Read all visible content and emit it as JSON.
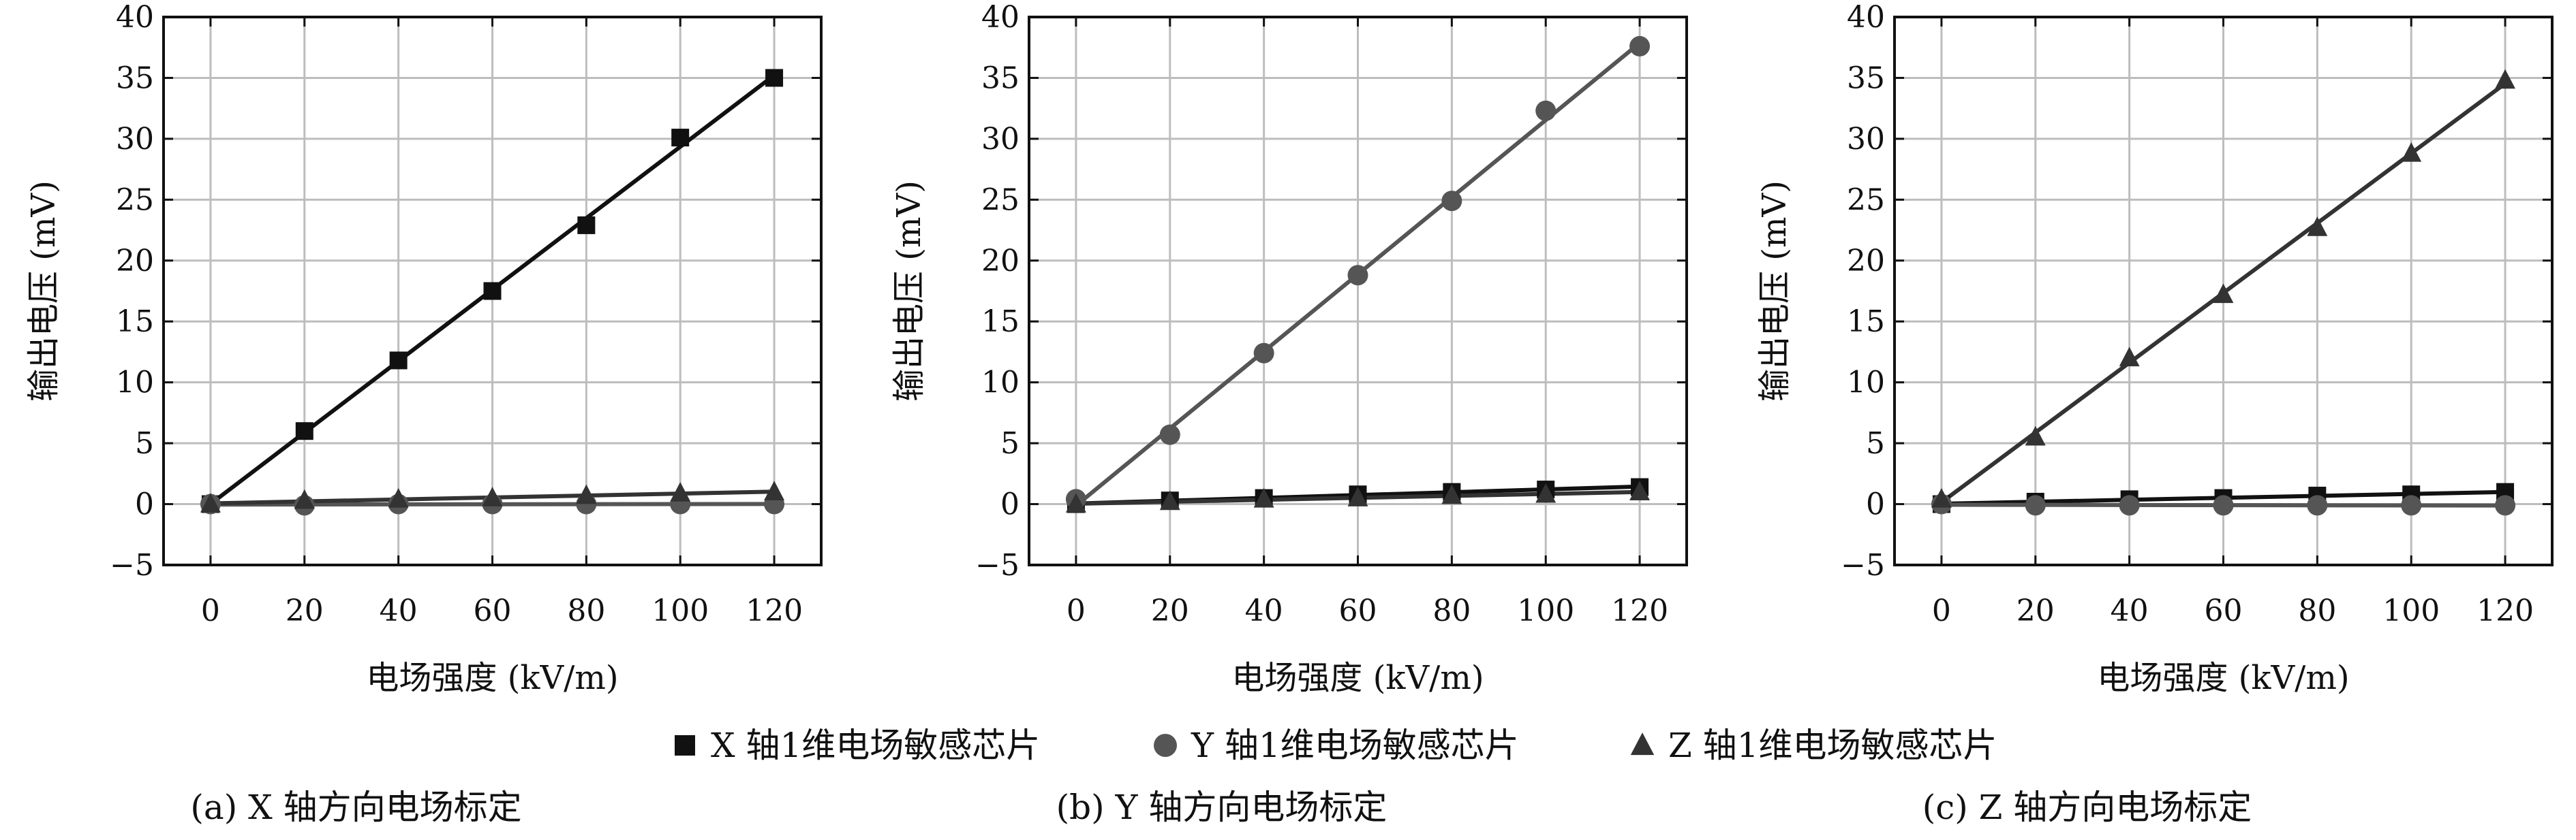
{
  "chart_data": [
    {
      "type": "line",
      "xlabel": "电场强度 (kV/m)",
      "ylabel": "输出电压 (mV)",
      "xlim": [
        -10,
        130
      ],
      "ylim": [
        -5,
        40
      ],
      "x_ticks": [
        0,
        20,
        40,
        60,
        80,
        100,
        120
      ],
      "y_ticks": [
        -5,
        0,
        5,
        10,
        15,
        20,
        25,
        30,
        35,
        40
      ],
      "grid": true,
      "caption": "(a) X 轴方向电场标定",
      "x": [
        0,
        20,
        40,
        60,
        80,
        100,
        120
      ],
      "series": [
        {
          "name": "X 轴1维电场敏感芯片",
          "marker": "square",
          "color": "#111111",
          "values": [
            0,
            6.0,
            11.8,
            17.5,
            22.9,
            30.1,
            35.0
          ]
        },
        {
          "name": "Y 轴1维电场敏感芯片",
          "marker": "circle",
          "color": "#555555",
          "values": [
            0,
            -0.1,
            0,
            0,
            0,
            0,
            0
          ]
        },
        {
          "name": "Z 轴1维电场敏感芯片",
          "marker": "triangle",
          "color": "#333333",
          "values": [
            0,
            0.3,
            0.4,
            0.5,
            0.7,
            0.9,
            1.0
          ]
        }
      ]
    },
    {
      "type": "line",
      "xlabel": "电场强度 (kV/m)",
      "ylabel": "输出电压 (mV)",
      "xlim": [
        -10,
        130
      ],
      "ylim": [
        -5,
        40
      ],
      "x_ticks": [
        0,
        20,
        40,
        60,
        80,
        100,
        120
      ],
      "y_ticks": [
        -5,
        0,
        5,
        10,
        15,
        20,
        25,
        30,
        35,
        40
      ],
      "grid": true,
      "caption": "(b) Y 轴方向电场标定",
      "x": [
        0,
        20,
        40,
        60,
        80,
        100,
        120
      ],
      "series": [
        {
          "name": "X 轴1维电场敏感芯片",
          "marker": "square",
          "color": "#111111",
          "values": [
            0,
            0.3,
            0.5,
            0.8,
            1.0,
            1.2,
            1.4
          ]
        },
        {
          "name": "Y 轴1维电场敏感芯片",
          "marker": "circle",
          "color": "#555555",
          "values": [
            0.4,
            5.7,
            12.4,
            18.8,
            24.9,
            32.3,
            37.6
          ]
        },
        {
          "name": "Z 轴1维电场敏感芯片",
          "marker": "triangle",
          "color": "#333333",
          "values": [
            0,
            0.2,
            0.4,
            0.5,
            0.7,
            0.8,
            1.0
          ]
        }
      ]
    },
    {
      "type": "line",
      "xlabel": "电场强度 (kV/m)",
      "ylabel": "输出电压 (mV)",
      "xlim": [
        -10,
        130
      ],
      "ylim": [
        -5,
        40
      ],
      "x_ticks": [
        0,
        20,
        40,
        60,
        80,
        100,
        120
      ],
      "y_ticks": [
        -5,
        0,
        5,
        10,
        15,
        20,
        25,
        30,
        35,
        40
      ],
      "grid": true,
      "caption": "(c) Z 轴方向电场标定",
      "x": [
        0,
        20,
        40,
        60,
        80,
        100,
        120
      ],
      "series": [
        {
          "name": "X 轴1维电场敏感芯片",
          "marker": "square",
          "color": "#111111",
          "values": [
            0,
            0.2,
            0.4,
            0.5,
            0.7,
            0.8,
            1.0
          ]
        },
        {
          "name": "Y 轴1维电场敏感芯片",
          "marker": "circle",
          "color": "#555555",
          "values": [
            0,
            -0.1,
            -0.1,
            -0.1,
            -0.1,
            -0.1,
            -0.1
          ]
        },
        {
          "name": "Z 轴1维电场敏感芯片",
          "marker": "triangle",
          "color": "#333333",
          "values": [
            0.4,
            5.5,
            12.0,
            17.2,
            22.7,
            28.8,
            34.8
          ]
        }
      ]
    }
  ],
  "legend": {
    "position": "bottom-center",
    "items": [
      {
        "label": "X 轴1维电场敏感芯片",
        "marker": "square",
        "color": "#111111"
      },
      {
        "label": "Y 轴1维电场敏感芯片",
        "marker": "circle",
        "color": "#555555"
      },
      {
        "label": "Z 轴1维电场敏感芯片",
        "marker": "triangle",
        "color": "#333333"
      }
    ]
  }
}
